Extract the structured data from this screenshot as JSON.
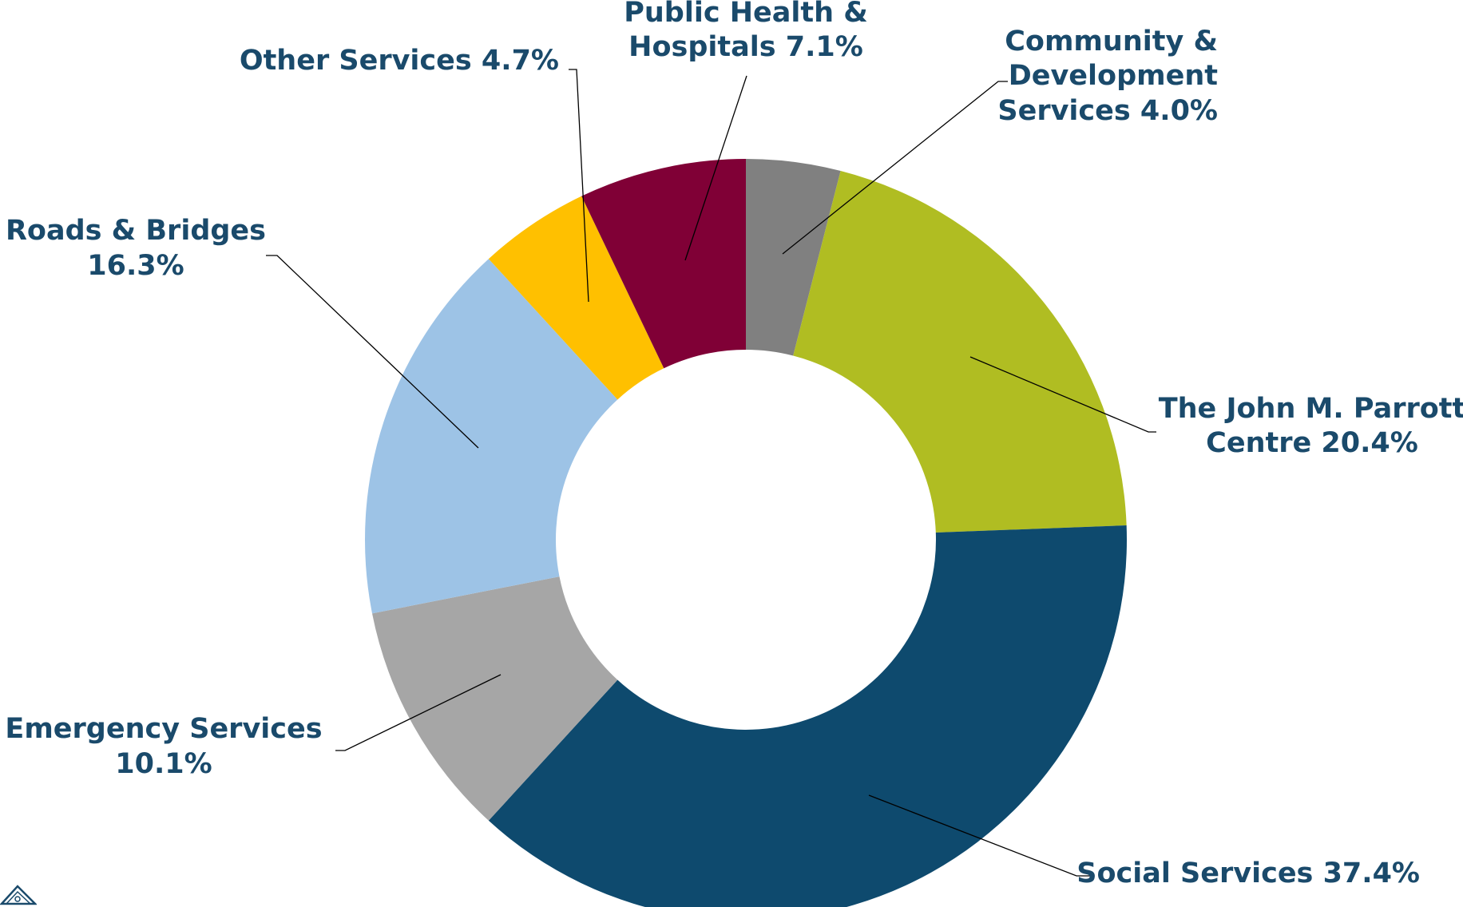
{
  "chart_data": {
    "type": "pie",
    "donut": true,
    "legend": "none",
    "slices": [
      {
        "label_lines": [
          "Community &",
          "Development",
          "Services 4.0%"
        ],
        "value": 4.0,
        "color": "#808080"
      },
      {
        "label_lines": [
          "The John M. Parrott",
          "Centre 20.4%"
        ],
        "value": 20.4,
        "color": "#b0bd22"
      },
      {
        "label_lines": [
          "Social Services 37.4%"
        ],
        "value": 37.4,
        "color": "#0e4a6e"
      },
      {
        "label_lines": [
          "Emergency Services",
          "10.1%"
        ],
        "value": 10.1,
        "color": "#a6a6a6"
      },
      {
        "label_lines": [
          "Roads & Bridges",
          "16.3%"
        ],
        "value": 16.3,
        "color": "#9dc3e6"
      },
      {
        "label_lines": [
          "Other Services 4.7%"
        ],
        "value": 4.7,
        "color": "#ffc000"
      },
      {
        "label_lines": [
          "Public Health &",
          "Hospitals 7.1%"
        ],
        "value": 7.1,
        "color": "#800036"
      }
    ]
  },
  "logo": {
    "icon": "house-logo-icon",
    "color": "#1a4a6b"
  }
}
